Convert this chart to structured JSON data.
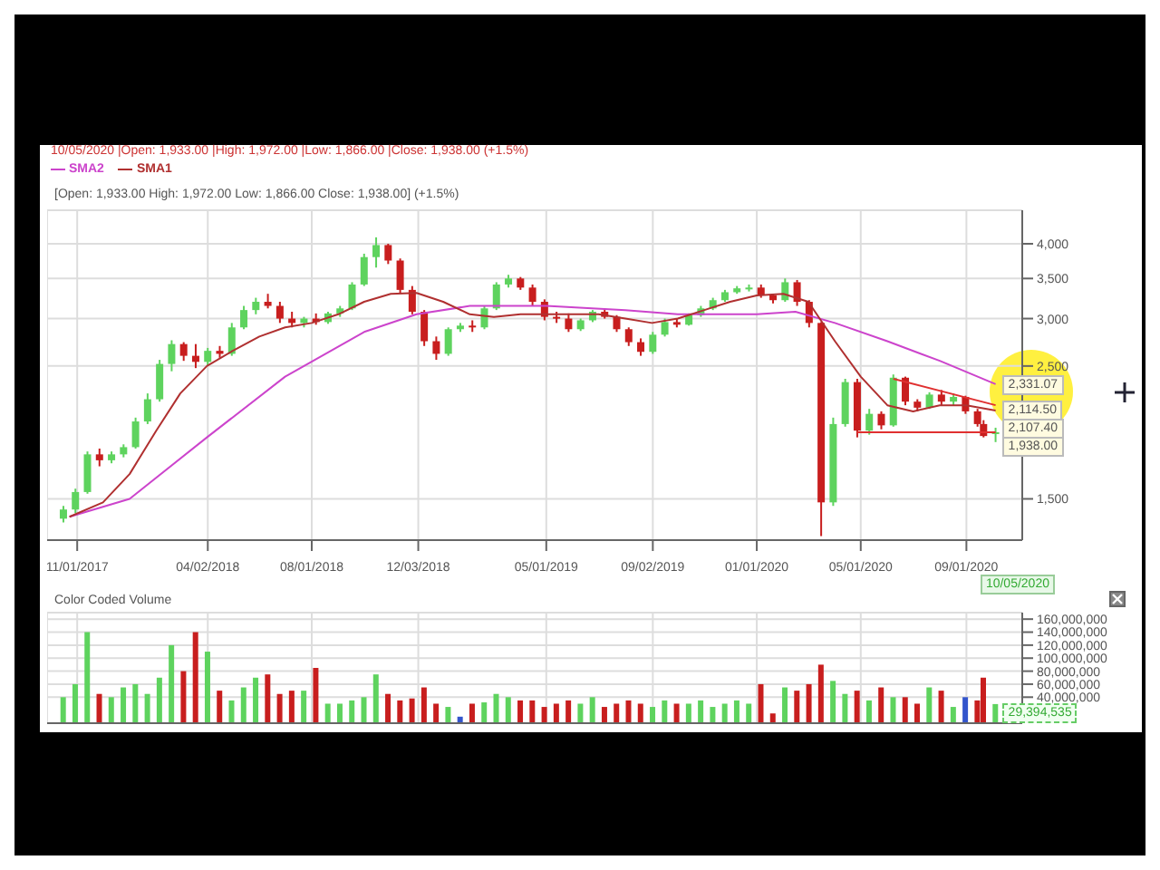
{
  "chart_data": [
    {
      "type": "candlestick",
      "log": true,
      "grid": true,
      "legend": "top left",
      "marker": "none",
      "line_style": "solid",
      "annotations": [
        "10/05/2020 |Open: 1,933.00 |High: 1,972.00 |Low: 1,866.00 |Close: 1,938.00 (+1.5%)",
        "[Open: 1,933.00  High: 1,972.00  Low: 1,866.00  Close: 1,938.00] (+1.5%)",
        {
          "text": "2,331.07",
          "x": "2020-10-05",
          "y": 2331.07
        },
        {
          "text": "2,114.50",
          "x": "2020-10-05",
          "y": 2114.5
        },
        {
          "text": "2,107.40",
          "x": "2020-10-05",
          "y": 2107.4
        },
        {
          "text": "1,938.00",
          "x": "2020-10-05",
          "y": 1938
        },
        "10/05/2020"
      ],
      "xlim": [
        "2017-09-27",
        "2020-11-05"
      ],
      "xticks": [
        {
          "value": "2017-11-01",
          "label": "11/01/2017"
        },
        {
          "value": "2018-04-02",
          "label": "04/02/2018"
        },
        {
          "value": "2018-08-01",
          "label": "08/01/2018"
        },
        {
          "value": "2018-12-03",
          "label": "12/03/2018"
        },
        {
          "value": "2019-05-01",
          "label": "05/01/2019"
        },
        {
          "value": "2019-09-02",
          "label": "09/02/2019"
        },
        {
          "value": "2020-01-01",
          "label": "01/01/2020"
        },
        {
          "value": "2020-05-01",
          "label": "05/01/2020"
        },
        {
          "value": "2020-09-01",
          "label": "09/01/2020"
        }
      ],
      "ylim": [
        1280,
        4550
      ],
      "yticks": [
        {
          "value": 1500,
          "label": "1,500"
        },
        {
          "value": 2500,
          "label": "2,500"
        },
        {
          "value": 3000,
          "label": "3,000"
        },
        {
          "value": 3500,
          "label": "3,500"
        },
        {
          "value": 4000,
          "label": "4,000"
        }
      ],
      "x": [
        "2017-10-16",
        "2017-10-30",
        "2017-11-13",
        "2017-11-27",
        "2017-12-11",
        "2017-12-25",
        "2018-01-08",
        "2018-01-22",
        "2018-02-05",
        "2018-02-19",
        "2018-03-05",
        "2018-03-19",
        "2018-04-02",
        "2018-04-16",
        "2018-04-30",
        "2018-05-14",
        "2018-05-28",
        "2018-06-11",
        "2018-06-25",
        "2018-07-09",
        "2018-07-23",
        "2018-08-06",
        "2018-08-20",
        "2018-09-03",
        "2018-09-17",
        "2018-10-01",
        "2018-10-15",
        "2018-10-29",
        "2018-11-12",
        "2018-11-26",
        "2018-12-10",
        "2018-12-24",
        "2019-01-07",
        "2019-01-21",
        "2019-02-04",
        "2019-02-18",
        "2019-03-04",
        "2019-03-18",
        "2019-04-01",
        "2019-04-15",
        "2019-04-29",
        "2019-05-13",
        "2019-05-27",
        "2019-06-10",
        "2019-06-24",
        "2019-07-08",
        "2019-07-22",
        "2019-08-05",
        "2019-08-19",
        "2019-09-02",
        "2019-09-16",
        "2019-09-30",
        "2019-10-14",
        "2019-10-28",
        "2019-11-11",
        "2019-11-25",
        "2019-12-09",
        "2019-12-23",
        "2020-01-06",
        "2020-01-20",
        "2020-02-03",
        "2020-02-17",
        "2020-03-02",
        "2020-03-16",
        "2020-03-30",
        "2020-04-13",
        "2020-04-27",
        "2020-05-11",
        "2020-05-25",
        "2020-06-08",
        "2020-06-22",
        "2020-07-06",
        "2020-07-20",
        "2020-08-03",
        "2020-08-17",
        "2020-08-31",
        "2020-09-14",
        "2020-09-21",
        "2020-10-05"
      ],
      "ohlc": [
        [
          1390,
          1460,
          1370,
          1440
        ],
        [
          1440,
          1560,
          1420,
          1540
        ],
        [
          1540,
          1800,
          1530,
          1780
        ],
        [
          1780,
          1820,
          1700,
          1740
        ],
        [
          1740,
          1800,
          1720,
          1780
        ],
        [
          1780,
          1850,
          1760,
          1830
        ],
        [
          1830,
          2050,
          1820,
          2020
        ],
        [
          2020,
          2250,
          2000,
          2200
        ],
        [
          2200,
          2560,
          2180,
          2520
        ],
        [
          2520,
          2760,
          2450,
          2720
        ],
        [
          2720,
          2740,
          2550,
          2600
        ],
        [
          2600,
          2720,
          2480,
          2540
        ],
        [
          2540,
          2680,
          2500,
          2650
        ],
        [
          2650,
          2700,
          2580,
          2620
        ],
        [
          2620,
          2950,
          2600,
          2900
        ],
        [
          2900,
          3150,
          2880,
          3100
        ],
        [
          3100,
          3250,
          3050,
          3200
        ],
        [
          3200,
          3300,
          3120,
          3150
        ],
        [
          3150,
          3200,
          2950,
          3000
        ],
        [
          3000,
          3080,
          2900,
          2950
        ],
        [
          2950,
          3020,
          2900,
          3000
        ],
        [
          3000,
          3060,
          2930,
          2960
        ],
        [
          2960,
          3080,
          2940,
          3060
        ],
        [
          3060,
          3150,
          3020,
          3120
        ],
        [
          3120,
          3450,
          3100,
          3420
        ],
        [
          3420,
          3850,
          3400,
          3800
        ],
        [
          3800,
          4100,
          3650,
          3980
        ],
        [
          3980,
          4000,
          3700,
          3750
        ],
        [
          3750,
          3780,
          3300,
          3350
        ],
        [
          3350,
          3400,
          3050,
          3080
        ],
        [
          3080,
          3100,
          2700,
          2750
        ],
        [
          2750,
          2800,
          2560,
          2620
        ],
        [
          2620,
          2900,
          2600,
          2880
        ],
        [
          2880,
          2950,
          2850,
          2920
        ],
        [
          2920,
          2980,
          2850,
          2900
        ],
        [
          2900,
          3150,
          2880,
          3120
        ],
        [
          3120,
          3450,
          3100,
          3420
        ],
        [
          3420,
          3550,
          3380,
          3500
        ],
        [
          3500,
          3520,
          3350,
          3380
        ],
        [
          3380,
          3420,
          3150,
          3200
        ],
        [
          3200,
          3230,
          2980,
          3020
        ],
        [
          3020,
          3080,
          2950,
          3000
        ],
        [
          3000,
          3060,
          2850,
          2880
        ],
        [
          2880,
          3000,
          2860,
          2980
        ],
        [
          2980,
          3100,
          2960,
          3080
        ],
        [
          3080,
          3120,
          3000,
          3020
        ],
        [
          3020,
          3040,
          2850,
          2880
        ],
        [
          2880,
          2900,
          2700,
          2740
        ],
        [
          2740,
          2780,
          2600,
          2640
        ],
        [
          2640,
          2850,
          2620,
          2820
        ],
        [
          2820,
          3000,
          2800,
          2960
        ],
        [
          2960,
          3000,
          2900,
          2930
        ],
        [
          2930,
          3060,
          2920,
          3040
        ],
        [
          3040,
          3150,
          3020,
          3120
        ],
        [
          3120,
          3250,
          3100,
          3220
        ],
        [
          3220,
          3350,
          3200,
          3320
        ],
        [
          3320,
          3400,
          3300,
          3370
        ],
        [
          3370,
          3420,
          3330,
          3380
        ],
        [
          3380,
          3420,
          3250,
          3280
        ],
        [
          3280,
          3300,
          3180,
          3220
        ],
        [
          3220,
          3500,
          3200,
          3450
        ],
        [
          3450,
          3480,
          3150,
          3200
        ],
        [
          3200,
          3220,
          2900,
          2950
        ],
        [
          2950,
          2960,
          1300,
          1480
        ],
        [
          1480,
          2050,
          1460,
          2000
        ],
        [
          2000,
          2380,
          1980,
          2350
        ],
        [
          2350,
          2380,
          1900,
          1950
        ],
        [
          1950,
          2120,
          1920,
          2080
        ],
        [
          2080,
          2100,
          1960,
          1990
        ],
        [
          1990,
          2420,
          1980,
          2390
        ],
        [
          2390,
          2400,
          2150,
          2180
        ],
        [
          2180,
          2200,
          2100,
          2130
        ],
        [
          2130,
          2260,
          2120,
          2240
        ],
        [
          2240,
          2280,
          2150,
          2180
        ],
        [
          2180,
          2250,
          2150,
          2220
        ],
        [
          2220,
          2230,
          2080,
          2100
        ],
        [
          2100,
          2120,
          1980,
          2000
        ],
        [
          2000,
          2030,
          1900,
          1910
        ],
        [
          1933,
          1972,
          1866,
          1938
        ]
      ],
      "colors": [
        "#5ed35e",
        "#5ed35e",
        "#5ed35e",
        "#c81e1e",
        "#5ed35e",
        "#5ed35e",
        "#5ed35e",
        "#5ed35e",
        "#5ed35e",
        "#5ed35e",
        "#c81e1e",
        "#c81e1e",
        "#5ed35e",
        "#c81e1e",
        "#5ed35e",
        "#5ed35e",
        "#5ed35e",
        "#c81e1e",
        "#c81e1e",
        "#c81e1e",
        "#5ed35e",
        "#c81e1e",
        "#5ed35e",
        "#5ed35e",
        "#5ed35e",
        "#5ed35e",
        "#5ed35e",
        "#c81e1e",
        "#c81e1e",
        "#c81e1e",
        "#c81e1e",
        "#c81e1e",
        "#5ed35e",
        "#5ed35e",
        "#c81e1e",
        "#5ed35e",
        "#5ed35e",
        "#5ed35e",
        "#c81e1e",
        "#c81e1e",
        "#c81e1e",
        "#c81e1e",
        "#c81e1e",
        "#5ed35e",
        "#5ed35e",
        "#c81e1e",
        "#c81e1e",
        "#c81e1e",
        "#c81e1e",
        "#5ed35e",
        "#5ed35e",
        "#c81e1e",
        "#5ed35e",
        "#5ed35e",
        "#5ed35e",
        "#5ed35e",
        "#5ed35e",
        "#5ed35e",
        "#c81e1e",
        "#c81e1e",
        "#5ed35e",
        "#c81e1e",
        "#c81e1e",
        "#c81e1e",
        "#5ed35e",
        "#5ed35e",
        "#c81e1e",
        "#5ed35e",
        "#c81e1e",
        "#5ed35e",
        "#c81e1e",
        "#c81e1e",
        "#5ed35e",
        "#c81e1e",
        "#5ed35e",
        "#c81e1e",
        "#c81e1e",
        "#c81e1e",
        "#5ed35e"
      ],
      "series": [
        {
          "type": "line",
          "name": "SMA2",
          "color": "#cc44cc",
          "x": [
            "2017-10-23",
            "2018-01-01",
            "2018-04-01",
            "2018-07-01",
            "2018-10-01",
            "2018-12-01",
            "2019-02-01",
            "2019-05-01",
            "2019-08-01",
            "2019-10-01",
            "2020-01-01",
            "2020-02-15",
            "2020-04-01",
            "2020-06-01",
            "2020-08-01",
            "2020-10-05"
          ],
          "values": [
            1400,
            1500,
            1900,
            2400,
            2850,
            3050,
            3150,
            3150,
            3100,
            3050,
            3050,
            3080,
            2950,
            2750,
            2550,
            2331.07
          ]
        },
        {
          "type": "line",
          "name": "SMA1",
          "color": "#b03030",
          "x": [
            "2017-10-23",
            "2017-12-01",
            "2018-01-01",
            "2018-02-01",
            "2018-03-01",
            "2018-04-01",
            "2018-05-01",
            "2018-06-01",
            "2018-07-01",
            "2018-08-01",
            "2018-09-01",
            "2018-10-01",
            "2018-11-01",
            "2018-12-01",
            "2019-01-01",
            "2019-02-01",
            "2019-03-01",
            "2019-04-01",
            "2019-05-01",
            "2019-06-01",
            "2019-07-01",
            "2019-08-01",
            "2019-09-01",
            "2019-10-01",
            "2019-11-01",
            "2019-12-01",
            "2020-01-01",
            "2020-02-01",
            "2020-03-01",
            "2020-04-01",
            "2020-05-01",
            "2020-06-01",
            "2020-07-01",
            "2020-08-01",
            "2020-09-01",
            "2020-10-05"
          ],
          "values": [
            1400,
            1480,
            1650,
            1950,
            2250,
            2500,
            2650,
            2800,
            2900,
            2950,
            3050,
            3200,
            3300,
            3310,
            3200,
            3050,
            3020,
            3050,
            3050,
            3050,
            3050,
            3000,
            2950,
            3000,
            3100,
            3200,
            3280,
            3300,
            3200,
            2750,
            2400,
            2150,
            2100,
            2150,
            2150,
            2107.4
          ]
        },
        {
          "type": "line",
          "color": "#e03030",
          "x": [
            "2020-06-08",
            "2020-10-05"
          ],
          "values": [
            2380,
            2150
          ]
        },
        {
          "type": "line",
          "color": "#e03030",
          "x": [
            "2020-04-27",
            "2020-10-05"
          ],
          "values": [
            1938,
            1938
          ]
        }
      ]
    },
    {
      "type": "bar",
      "title": "Color Coded Volume",
      "grid": true,
      "tick_labels": "y",
      "annotations": [
        {
          "text": "29,394,535",
          "x": "2020-10-05",
          "y": 29394535
        }
      ],
      "xlim": [
        "2017-09-27",
        "2020-11-05"
      ],
      "xticks": [
        {
          "value": "2017-11-01",
          "label": null
        },
        {
          "value": "2018-04-02",
          "label": null
        },
        {
          "value": "2018-08-01",
          "label": null
        },
        {
          "value": "2018-12-03",
          "label": null
        },
        {
          "value": "2019-05-01",
          "label": null
        },
        {
          "value": "2019-09-02",
          "label": null
        },
        {
          "value": "2020-01-01",
          "label": null
        },
        {
          "value": "2020-05-01",
          "label": null
        },
        {
          "value": "2020-09-01",
          "label": null
        }
      ],
      "ylim": [
        0,
        170000000
      ],
      "yticks": [
        {
          "value": 40000000,
          "label": "40,000,000"
        },
        {
          "value": 60000000,
          "label": "60,000,000"
        },
        {
          "value": 80000000,
          "label": "80,000,000"
        },
        {
          "value": 100000000,
          "label": "100,000,000"
        },
        {
          "value": 120000000,
          "label": "120,000,000"
        },
        {
          "value": 140000000,
          "label": "140,000,000"
        },
        {
          "value": 160000000,
          "label": "160,000,000"
        }
      ],
      "x": [
        "2017-10-16",
        "2017-10-30",
        "2017-11-13",
        "2017-11-27",
        "2017-12-11",
        "2017-12-25",
        "2018-01-08",
        "2018-01-22",
        "2018-02-05",
        "2018-02-19",
        "2018-03-05",
        "2018-03-19",
        "2018-04-02",
        "2018-04-16",
        "2018-04-30",
        "2018-05-14",
        "2018-05-28",
        "2018-06-11",
        "2018-06-25",
        "2018-07-09",
        "2018-07-23",
        "2018-08-06",
        "2018-08-20",
        "2018-09-03",
        "2018-09-17",
        "2018-10-01",
        "2018-10-15",
        "2018-10-29",
        "2018-11-12",
        "2018-11-26",
        "2018-12-10",
        "2018-12-24",
        "2019-01-07",
        "2019-01-21",
        "2019-02-04",
        "2019-02-18",
        "2019-03-04",
        "2019-03-18",
        "2019-04-01",
        "2019-04-15",
        "2019-04-29",
        "2019-05-13",
        "2019-05-27",
        "2019-06-10",
        "2019-06-24",
        "2019-07-08",
        "2019-07-22",
        "2019-08-05",
        "2019-08-19",
        "2019-09-02",
        "2019-09-16",
        "2019-09-30",
        "2019-10-14",
        "2019-10-28",
        "2019-11-11",
        "2019-11-25",
        "2019-12-09",
        "2019-12-23",
        "2020-01-06",
        "2020-01-20",
        "2020-02-03",
        "2020-02-17",
        "2020-03-02",
        "2020-03-16",
        "2020-03-30",
        "2020-04-13",
        "2020-04-27",
        "2020-05-11",
        "2020-05-25",
        "2020-06-08",
        "2020-06-22",
        "2020-07-06",
        "2020-07-20",
        "2020-08-03",
        "2020-08-17",
        "2020-08-31",
        "2020-09-14",
        "2020-09-21",
        "2020-10-05"
      ],
      "values": [
        40000000,
        60000000,
        140000000,
        45000000,
        40000000,
        55000000,
        60000000,
        45000000,
        70000000,
        120000000,
        80000000,
        140000000,
        110000000,
        50000000,
        35000000,
        55000000,
        70000000,
        75000000,
        45000000,
        50000000,
        50000000,
        85000000,
        30000000,
        30000000,
        35000000,
        40000000,
        75000000,
        45000000,
        35000000,
        38000000,
        55000000,
        30000000,
        25000000,
        10000000,
        30000000,
        32000000,
        45000000,
        40000000,
        35000000,
        35000000,
        25000000,
        30000000,
        35000000,
        30000000,
        40000000,
        25000000,
        30000000,
        35000000,
        30000000,
        25000000,
        35000000,
        30000000,
        30000000,
        35000000,
        25000000,
        30000000,
        35000000,
        30000000,
        60000000,
        15000000,
        55000000,
        50000000,
        60000000,
        90000000,
        65000000,
        45000000,
        50000000,
        35000000,
        55000000,
        40000000,
        40000000,
        30000000,
        55000000,
        50000000,
        25000000,
        40000000,
        35000000,
        70000000,
        29394535
      ],
      "colors": [
        "#5ed35e",
        "#5ed35e",
        "#5ed35e",
        "#c81e1e",
        "#5ed35e",
        "#5ed35e",
        "#5ed35e",
        "#5ed35e",
        "#5ed35e",
        "#5ed35e",
        "#c81e1e",
        "#c81e1e",
        "#5ed35e",
        "#c81e1e",
        "#5ed35e",
        "#5ed35e",
        "#5ed35e",
        "#c81e1e",
        "#c81e1e",
        "#c81e1e",
        "#5ed35e",
        "#c81e1e",
        "#5ed35e",
        "#5ed35e",
        "#5ed35e",
        "#5ed35e",
        "#5ed35e",
        "#c81e1e",
        "#c81e1e",
        "#c81e1e",
        "#c81e1e",
        "#c81e1e",
        "#5ed35e",
        "#3355cc",
        "#c81e1e",
        "#5ed35e",
        "#5ed35e",
        "#5ed35e",
        "#c81e1e",
        "#c81e1e",
        "#c81e1e",
        "#c81e1e",
        "#c81e1e",
        "#5ed35e",
        "#5ed35e",
        "#c81e1e",
        "#c81e1e",
        "#c81e1e",
        "#c81e1e",
        "#5ed35e",
        "#5ed35e",
        "#c81e1e",
        "#5ed35e",
        "#5ed35e",
        "#5ed35e",
        "#5ed35e",
        "#5ed35e",
        "#5ed35e",
        "#c81e1e",
        "#c81e1e",
        "#5ed35e",
        "#c81e1e",
        "#c81e1e",
        "#c81e1e",
        "#5ed35e",
        "#5ed35e",
        "#c81e1e",
        "#5ed35e",
        "#c81e1e",
        "#5ed35e",
        "#c81e1e",
        "#c81e1e",
        "#5ed35e",
        "#c81e1e",
        "#5ed35e",
        "#3355cc",
        "#c81e1e",
        "#c81e1e",
        "#5ed35e"
      ]
    }
  ]
}
